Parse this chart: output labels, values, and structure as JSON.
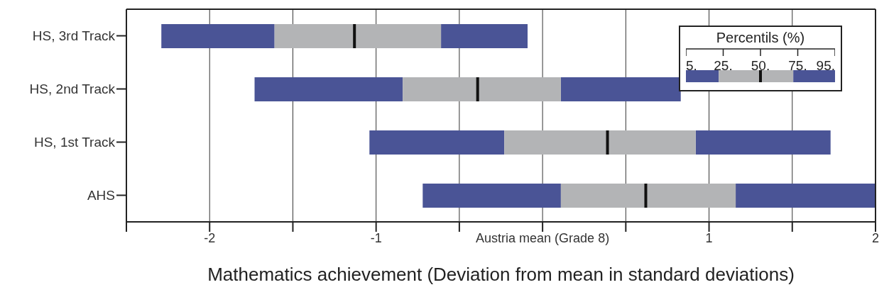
{
  "chart_data": {
    "type": "box",
    "orientation": "horizontal",
    "xlabel": "Mathematics achievement (Deviation from mean in standard deviations)",
    "legend_title": "Percentils (%)",
    "categories": [
      "HS, 3rd Track",
      "HS, 2nd Track",
      "HS, 1st Track",
      "AHS"
    ],
    "color": "#4a5496",
    "series": [
      {
        "color": "#b3b4b6",
        "boxes": [
          {
            "low": -2.29,
            "q1": -1.61,
            "median": -1.13,
            "q3": -0.61,
            "high": -0.09
          },
          {
            "low": -1.73,
            "q1": -0.84,
            "median": -0.39,
            "q3": 0.11,
            "high": 0.83
          },
          {
            "low": -1.04,
            "q1": -0.23,
            "median": 0.39,
            "q3": 0.92,
            "high": 1.73
          },
          {
            "low": -0.72,
            "q1": 0.11,
            "median": 0.62,
            "q3": 1.16,
            "high": 2.0
          }
        ]
      }
    ],
    "xlim": [
      -2.5,
      2
    ],
    "xticks": [
      {
        "value": -2.5,
        "label": null
      },
      -2,
      {
        "value": -1.5,
        "label": null
      },
      -1,
      {
        "value": -0.5,
        "label": null
      },
      {
        "value": 0,
        "label": "Austria mean (Grade 8)"
      },
      {
        "value": 0.5,
        "label": null
      },
      1,
      {
        "value": 1.5,
        "label": null
      },
      2
    ],
    "grid": "x",
    "annotations": [
      "5.",
      "25.",
      "50.",
      "75.",
      "95."
    ]
  }
}
